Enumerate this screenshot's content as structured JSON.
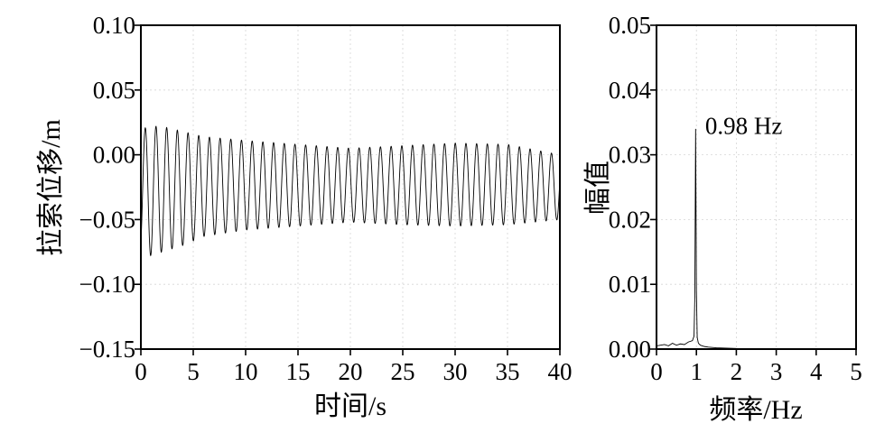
{
  "chart_data": [
    {
      "type": "line",
      "xlabel": "时间/s",
      "ylabel": "拉索位移/m",
      "xlim": [
        0,
        40
      ],
      "ylim": [
        -0.15,
        0.1
      ],
      "xticks": [
        "0",
        "5",
        "10",
        "15",
        "20",
        "25",
        "30",
        "35",
        "40"
      ],
      "yticks": [
        "0.10",
        "0.05",
        "0.00",
        "−0.05",
        "−0.10",
        "−0.15"
      ],
      "grid": true,
      "series": [
        {
          "signal": "oscillation",
          "frequency_hz": 0.98,
          "x_range": [
            0,
            40
          ],
          "envelope_t": [
            0,
            1,
            2,
            4,
            6,
            10,
            15,
            20,
            25,
            30,
            35,
            40
          ],
          "envelope_max": [
            0.02,
            0.022,
            0.022,
            0.018,
            0.014,
            0.011,
            0.008,
            0.005,
            0.007,
            0.009,
            0.008,
            0.0
          ],
          "envelope_min": [
            -0.075,
            -0.078,
            -0.075,
            -0.07,
            -0.063,
            -0.058,
            -0.055,
            -0.052,
            -0.054,
            -0.055,
            -0.054,
            -0.05
          ]
        }
      ]
    },
    {
      "type": "line",
      "xlabel": "频率/Hz",
      "ylabel": "幅值",
      "xlim": [
        0,
        5
      ],
      "ylim": [
        0,
        0.05
      ],
      "xticks": [
        "0",
        "1",
        "2",
        "3",
        "4",
        "5"
      ],
      "yticks": [
        "0.05",
        "0.04",
        "0.03",
        "0.02",
        "0.01",
        "0.00"
      ],
      "grid": true,
      "annotations": [
        {
          "text": "0.98 Hz",
          "x": 1.22,
          "y": 0.0345
        }
      ],
      "series": [
        {
          "x": [
            0,
            0.1,
            0.2,
            0.3,
            0.4,
            0.5,
            0.6,
            0.7,
            0.8,
            0.9,
            0.94,
            0.96,
            0.98,
            1.0,
            1.02,
            1.05,
            1.1,
            1.2,
            1.3,
            1.5,
            2.0,
            3.0,
            4.0,
            5.0
          ],
          "y": [
            0.0005,
            0.0006,
            0.0007,
            0.0005,
            0.0009,
            0.0006,
            0.0008,
            0.0007,
            0.0011,
            0.0013,
            0.002,
            0.008,
            0.034,
            0.009,
            0.0018,
            0.0009,
            0.0006,
            0.0004,
            0.0003,
            0.0002,
            0.0001,
            5e-05,
            3e-05,
            2e-05
          ]
        }
      ]
    }
  ]
}
